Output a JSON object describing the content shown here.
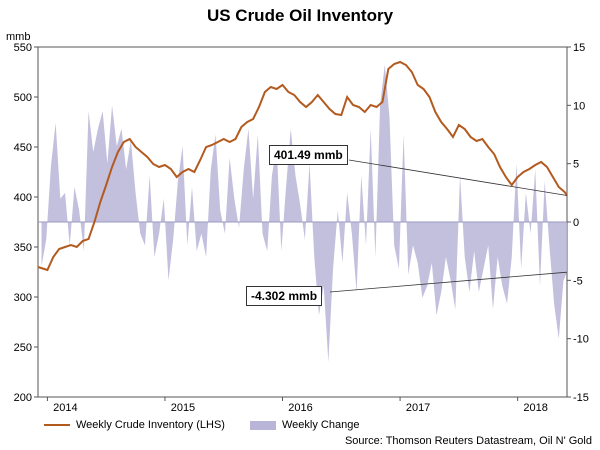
{
  "chart_data": {
    "type": "line+area",
    "title": "US Crude Oil Inventory",
    "left_axis": {
      "label": "mmb",
      "min": 200,
      "max": 550,
      "ticks": [
        200,
        250,
        300,
        350,
        400,
        450,
        500,
        550
      ]
    },
    "right_axis": {
      "min": -15,
      "max": 15,
      "ticks": [
        -15,
        -10,
        -5,
        0,
        5,
        10,
        15
      ]
    },
    "x_axis": {
      "start": 2013.92,
      "end": 2018.42,
      "ticks": [
        {
          "label": "2014",
          "value": 2014.0
        },
        {
          "label": "2015",
          "value": 2015.0
        },
        {
          "label": "2016",
          "value": 2016.0
        },
        {
          "label": "2017",
          "value": 2017.0
        },
        {
          "label": "2018",
          "value": 2018.0
        }
      ]
    },
    "series": [
      {
        "name": "Weekly Crude Inventory (LHS)",
        "axis": "left",
        "color": "#b35a1f",
        "points": [
          [
            2013.92,
            330
          ],
          [
            2014.0,
            327
          ],
          [
            2014.05,
            340
          ],
          [
            2014.1,
            348
          ],
          [
            2014.15,
            350
          ],
          [
            2014.2,
            352
          ],
          [
            2014.25,
            350
          ],
          [
            2014.3,
            356
          ],
          [
            2014.35,
            358
          ],
          [
            2014.4,
            375
          ],
          [
            2014.45,
            395
          ],
          [
            2014.5,
            412
          ],
          [
            2014.55,
            430
          ],
          [
            2014.6,
            445
          ],
          [
            2014.65,
            455
          ],
          [
            2014.7,
            458
          ],
          [
            2014.75,
            450
          ],
          [
            2014.8,
            445
          ],
          [
            2014.85,
            440
          ],
          [
            2014.9,
            433
          ],
          [
            2014.95,
            430
          ],
          [
            2015.0,
            432
          ],
          [
            2015.05,
            428
          ],
          [
            2015.1,
            420
          ],
          [
            2015.15,
            425
          ],
          [
            2015.2,
            428
          ],
          [
            2015.25,
            425
          ],
          [
            2015.3,
            437
          ],
          [
            2015.35,
            450
          ],
          [
            2015.4,
            452
          ],
          [
            2015.45,
            455
          ],
          [
            2015.5,
            458
          ],
          [
            2015.55,
            455
          ],
          [
            2015.6,
            458
          ],
          [
            2015.65,
            470
          ],
          [
            2015.7,
            475
          ],
          [
            2015.75,
            478
          ],
          [
            2015.8,
            490
          ],
          [
            2015.85,
            505
          ],
          [
            2015.9,
            510
          ],
          [
            2015.95,
            508
          ],
          [
            2016.0,
            512
          ],
          [
            2016.05,
            505
          ],
          [
            2016.1,
            502
          ],
          [
            2016.15,
            495
          ],
          [
            2016.2,
            490
          ],
          [
            2016.25,
            495
          ],
          [
            2016.3,
            502
          ],
          [
            2016.35,
            495
          ],
          [
            2016.4,
            488
          ],
          [
            2016.45,
            483
          ],
          [
            2016.5,
            482
          ],
          [
            2016.55,
            500
          ],
          [
            2016.6,
            492
          ],
          [
            2016.65,
            490
          ],
          [
            2016.7,
            485
          ],
          [
            2016.75,
            492
          ],
          [
            2016.8,
            490
          ],
          [
            2016.85,
            495
          ],
          [
            2016.9,
            528
          ],
          [
            2016.95,
            533
          ],
          [
            2017.0,
            535
          ],
          [
            2017.05,
            532
          ],
          [
            2017.1,
            525
          ],
          [
            2017.15,
            512
          ],
          [
            2017.2,
            508
          ],
          [
            2017.25,
            500
          ],
          [
            2017.3,
            485
          ],
          [
            2017.35,
            475
          ],
          [
            2017.4,
            468
          ],
          [
            2017.45,
            460
          ],
          [
            2017.5,
            472
          ],
          [
            2017.55,
            468
          ],
          [
            2017.6,
            460
          ],
          [
            2017.65,
            456
          ],
          [
            2017.7,
            458
          ],
          [
            2017.75,
            450
          ],
          [
            2017.8,
            443
          ],
          [
            2017.85,
            430
          ],
          [
            2017.9,
            420
          ],
          [
            2017.95,
            412
          ],
          [
            2018.0,
            420
          ],
          [
            2018.05,
            425
          ],
          [
            2018.1,
            428
          ],
          [
            2018.15,
            432
          ],
          [
            2018.2,
            435
          ],
          [
            2018.25,
            430
          ],
          [
            2018.3,
            420
          ],
          [
            2018.35,
            410
          ],
          [
            2018.4,
            405
          ],
          [
            2018.42,
            401.49
          ]
        ]
      },
      {
        "name": "Weekly Change",
        "axis": "right",
        "color": "#b8b5d8",
        "points": [
          [
            2013.95,
            -3.8
          ],
          [
            2013.99,
            -1.5
          ],
          [
            2014.03,
            4.8
          ],
          [
            2014.07,
            8.5
          ],
          [
            2014.11,
            2.0
          ],
          [
            2014.15,
            2.5
          ],
          [
            2014.19,
            -2.0
          ],
          [
            2014.23,
            3.0
          ],
          [
            2014.27,
            1.0
          ],
          [
            2014.31,
            -2.5
          ],
          [
            2014.35,
            9.5
          ],
          [
            2014.39,
            6.0
          ],
          [
            2014.43,
            8.0
          ],
          [
            2014.47,
            9.5
          ],
          [
            2014.51,
            5.0
          ],
          [
            2014.55,
            10.0
          ],
          [
            2014.59,
            6.5
          ],
          [
            2014.63,
            8.0
          ],
          [
            2014.67,
            4.5
          ],
          [
            2014.71,
            7.0
          ],
          [
            2014.75,
            2.5
          ],
          [
            2014.79,
            -1.0
          ],
          [
            2014.83,
            -2.0
          ],
          [
            2014.87,
            4.0
          ],
          [
            2014.91,
            -3.0
          ],
          [
            2014.95,
            -1.0
          ],
          [
            2014.99,
            2.0
          ],
          [
            2015.03,
            -5.0
          ],
          [
            2015.07,
            -1.5
          ],
          [
            2015.11,
            3.5
          ],
          [
            2015.15,
            6.5
          ],
          [
            2015.19,
            -2.0
          ],
          [
            2015.23,
            3.0
          ],
          [
            2015.27,
            -2.5
          ],
          [
            2015.31,
            -1.0
          ],
          [
            2015.35,
            -3.0
          ],
          [
            2015.39,
            4.5
          ],
          [
            2015.43,
            7.5
          ],
          [
            2015.47,
            1.0
          ],
          [
            2015.51,
            -1.0
          ],
          [
            2015.55,
            5.5
          ],
          [
            2015.59,
            2.0
          ],
          [
            2015.63,
            -0.5
          ],
          [
            2015.67,
            4.5
          ],
          [
            2015.71,
            8.0
          ],
          [
            2015.75,
            2.0
          ],
          [
            2015.79,
            7.5
          ],
          [
            2015.83,
            -1.0
          ],
          [
            2015.87,
            -2.5
          ],
          [
            2015.91,
            4.0
          ],
          [
            2015.95,
            6.5
          ],
          [
            2015.99,
            -2.5
          ],
          [
            2016.03,
            3.0
          ],
          [
            2016.07,
            8.0
          ],
          [
            2016.11,
            4.0
          ],
          [
            2016.15,
            1.5
          ],
          [
            2016.19,
            -1.5
          ],
          [
            2016.23,
            5.0
          ],
          [
            2016.27,
            -3.0
          ],
          [
            2016.31,
            -8.0
          ],
          [
            2016.35,
            -5.5
          ],
          [
            2016.39,
            -12.0
          ],
          [
            2016.43,
            -4.0
          ],
          [
            2016.47,
            1.0
          ],
          [
            2016.51,
            -3.5
          ],
          [
            2016.55,
            2.5
          ],
          [
            2016.59,
            -1.0
          ],
          [
            2016.63,
            -6.0
          ],
          [
            2016.67,
            4.0
          ],
          [
            2016.71,
            -2.0
          ],
          [
            2016.75,
            8.0
          ],
          [
            2016.79,
            -3.0
          ],
          [
            2016.83,
            10.0
          ],
          [
            2016.87,
            13.5
          ],
          [
            2016.91,
            9.0
          ],
          [
            2016.95,
            -2.0
          ],
          [
            2016.99,
            -4.0
          ],
          [
            2017.03,
            7.5
          ],
          [
            2017.07,
            -4.5
          ],
          [
            2017.11,
            -2.0
          ],
          [
            2017.15,
            -3.5
          ],
          [
            2017.19,
            -6.5
          ],
          [
            2017.23,
            -5.5
          ],
          [
            2017.27,
            -3.5
          ],
          [
            2017.31,
            -8.0
          ],
          [
            2017.35,
            -6.0
          ],
          [
            2017.39,
            -3.0
          ],
          [
            2017.43,
            -5.0
          ],
          [
            2017.47,
            -7.5
          ],
          [
            2017.51,
            4.0
          ],
          [
            2017.55,
            -3.0
          ],
          [
            2017.59,
            -6.0
          ],
          [
            2017.63,
            -2.5
          ],
          [
            2017.67,
            -6.0
          ],
          [
            2017.71,
            -4.0
          ],
          [
            2017.75,
            -2.0
          ],
          [
            2017.79,
            -7.5
          ],
          [
            2017.83,
            -3.0
          ],
          [
            2017.87,
            -5.5
          ],
          [
            2017.91,
            -7.0
          ],
          [
            2017.95,
            -3.0
          ],
          [
            2017.99,
            5.0
          ],
          [
            2018.03,
            -4.0
          ],
          [
            2018.07,
            2.5
          ],
          [
            2018.11,
            -1.0
          ],
          [
            2018.15,
            4.5
          ],
          [
            2018.19,
            -5.5
          ],
          [
            2018.23,
            3.5
          ],
          [
            2018.27,
            -2.0
          ],
          [
            2018.31,
            -7.0
          ],
          [
            2018.35,
            -10.0
          ],
          [
            2018.39,
            -5.0
          ],
          [
            2018.42,
            -4.302
          ]
        ]
      }
    ],
    "annotations": [
      {
        "text": "401.49 mmb",
        "series": "Weekly Crude Inventory (LHS)"
      },
      {
        "text": "-4.302 mmb",
        "series": "Weekly Change"
      }
    ]
  },
  "legend": {
    "inventory": "Weekly Crude Inventory (LHS)",
    "change": "Weekly Change"
  },
  "source": "Source: Thomson Reuters Datastream, Oil N' Gold"
}
